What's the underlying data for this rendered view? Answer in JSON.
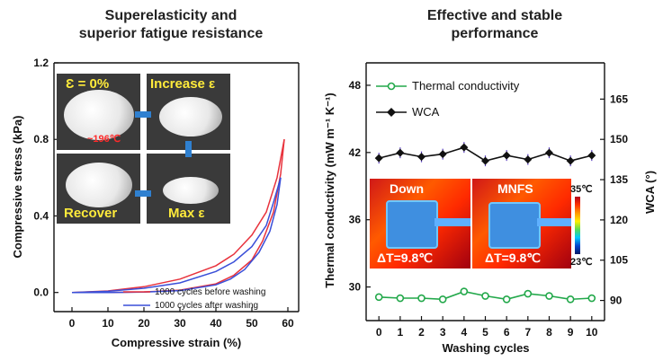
{
  "left_chart_title": [
    "Superelasticity and",
    "superior fatigue resistance"
  ],
  "right_chart_title": [
    "Effective and stable",
    "performance"
  ],
  "photos": {
    "top_left": "Ɛ = 0%",
    "top_left_temp": "~196℃",
    "top_right": "Increase ε",
    "bottom_left": "Recover",
    "bottom_right": "Max ε"
  },
  "thermal_images": {
    "left_label": "Down",
    "right_label": "MNFS",
    "left_delta": "ΔT=9.8℃",
    "right_delta": "ΔT=9.8℃",
    "scale_max": "35℃",
    "scale_min": "23℃"
  },
  "colors": {
    "before_washing": "#e8323c",
    "after_washing": "#3a4fd8",
    "thermal_conductivity": "#22a84a",
    "wca": "#111111",
    "photo_label": "#ffeb3b",
    "arrow": "#2f80d0"
  },
  "chart_data": [
    {
      "type": "line",
      "title": "Superelasticity and superior fatigue resistance",
      "xlabel": "Compressive strain (%)",
      "ylabel": "Compressive stress (kPa)",
      "xlim": [
        -5,
        63
      ],
      "ylim": [
        -0.1,
        1.2
      ],
      "xticks": [
        0,
        10,
        20,
        30,
        40,
        50,
        60
      ],
      "yticks": [
        "0.0",
        "0.4",
        "0.8",
        "1.2"
      ],
      "legend_position": "bottom-right",
      "series": [
        {
          "name": "1000 cycles before washing",
          "loading": [
            [
              0,
              0
            ],
            [
              10,
              0.008
            ],
            [
              20,
              0.03
            ],
            [
              30,
              0.07
            ],
            [
              40,
              0.14
            ],
            [
              45,
              0.2
            ],
            [
              50,
              0.3
            ],
            [
              54,
              0.42
            ],
            [
              57,
              0.6
            ],
            [
              59,
              0.8
            ]
          ],
          "unloading": [
            [
              59,
              0.8
            ],
            [
              58,
              0.62
            ],
            [
              56,
              0.42
            ],
            [
              53,
              0.27
            ],
            [
              50,
              0.17
            ],
            [
              45,
              0.09
            ],
            [
              40,
              0.045
            ],
            [
              30,
              0.012
            ],
            [
              20,
              0.003
            ],
            [
              10,
              0
            ],
            [
              0,
              0
            ]
          ]
        },
        {
          "name": "1000 cycles after washing",
          "loading": [
            [
              0,
              0
            ],
            [
              10,
              0.006
            ],
            [
              20,
              0.022
            ],
            [
              30,
              0.05
            ],
            [
              40,
              0.11
            ],
            [
              45,
              0.16
            ],
            [
              50,
              0.24
            ],
            [
              54,
              0.35
            ],
            [
              56,
              0.47
            ],
            [
              58,
              0.6
            ]
          ],
          "unloading": [
            [
              58,
              0.6
            ],
            [
              57,
              0.46
            ],
            [
              55,
              0.32
            ],
            [
              52,
              0.21
            ],
            [
              48,
              0.12
            ],
            [
              44,
              0.07
            ],
            [
              40,
              0.04
            ],
            [
              30,
              0.01
            ],
            [
              20,
              0.002
            ],
            [
              10,
              0
            ],
            [
              0,
              0
            ]
          ]
        }
      ]
    },
    {
      "type": "line",
      "title": "Effective and stable performance",
      "xlabel": "Washing cycles",
      "ylabel": "Thermal conductivity (mW m⁻¹ K⁻¹)",
      "ylabel_right": "WCA (°)",
      "x": [
        0,
        1,
        2,
        3,
        4,
        5,
        6,
        7,
        8,
        9,
        10
      ],
      "ylim": [
        27,
        50
      ],
      "yticks": [
        "30",
        "36",
        "42",
        "48"
      ],
      "ylim_right": [
        82.5,
        178.5
      ],
      "yticks_right": [
        "90",
        "105",
        "120",
        "135",
        "150",
        "165"
      ],
      "legend_position": "top-left",
      "series": [
        {
          "name": "Thermal conductivity",
          "axis": "left",
          "values": [
            29.1,
            29.0,
            29.0,
            28.9,
            29.6,
            29.2,
            28.9,
            29.4,
            29.2,
            28.9,
            29.0
          ]
        },
        {
          "name": "WCA",
          "axis": "right",
          "values": [
            143,
            145,
            143.5,
            144.5,
            147,
            142,
            144,
            142.5,
            145,
            142,
            144
          ]
        }
      ]
    }
  ]
}
